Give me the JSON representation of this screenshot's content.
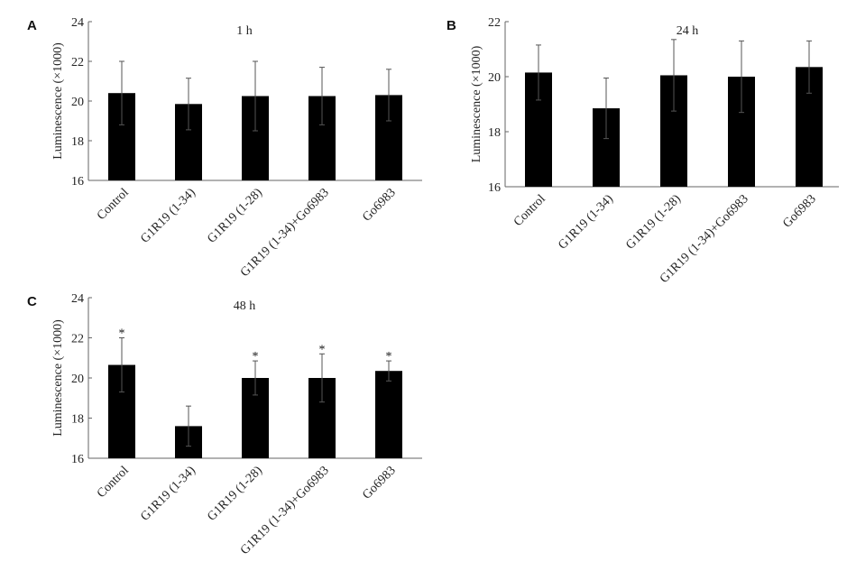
{
  "chart_data": [
    {
      "panel": "A",
      "type": "bar",
      "title": "1 h",
      "ylabel": "Luminescence (×1000)",
      "ylim": [
        16,
        24
      ],
      "yticks": [
        16,
        18,
        20,
        22,
        24
      ],
      "categories": [
        "Control",
        "G1R19 (1-34)",
        "G1R19 (1-28)",
        "G1R19 (1-34)+Go6983",
        "Go6983"
      ],
      "values": [
        20.4,
        19.85,
        20.25,
        20.25,
        20.3
      ],
      "errors": [
        1.6,
        1.3,
        1.75,
        1.45,
        1.3
      ],
      "significance": [
        "",
        "",
        "",
        "",
        ""
      ]
    },
    {
      "panel": "B",
      "type": "bar",
      "title": "24 h",
      "ylabel": "Luminescence (×1000)",
      "ylim": [
        16,
        22
      ],
      "yticks": [
        16,
        18,
        20,
        22
      ],
      "categories": [
        "Control",
        "G1R19 (1-34)",
        "G1R19 (1-28)",
        "G1R19 (1-34)+Go6983",
        "Go6983"
      ],
      "values": [
        20.15,
        18.85,
        20.05,
        20.0,
        20.35
      ],
      "errors": [
        1.0,
        1.1,
        1.3,
        1.3,
        0.95
      ],
      "significance": [
        "",
        "",
        "",
        "",
        ""
      ]
    },
    {
      "panel": "C",
      "type": "bar",
      "title": "48 h",
      "ylabel": "Luminescence (×1000)",
      "ylim": [
        16,
        24
      ],
      "yticks": [
        16,
        18,
        20,
        22,
        24
      ],
      "categories": [
        "Control",
        "G1R19 (1-34)",
        "G1R19 (1-28)",
        "G1R19 (1-34)+Go6983",
        "Go6983"
      ],
      "values": [
        20.65,
        17.6,
        20.0,
        20.0,
        20.35
      ],
      "errors": [
        1.35,
        1.0,
        0.85,
        1.2,
        0.5
      ],
      "significance": [
        "*",
        "",
        "*",
        "*",
        "*"
      ]
    }
  ]
}
